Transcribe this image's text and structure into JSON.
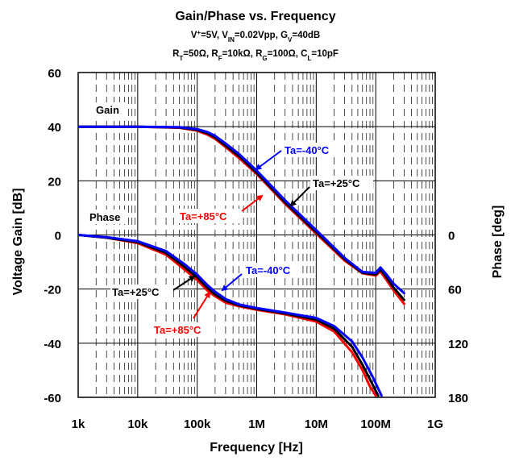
{
  "chart_data": {
    "type": "line",
    "title": "Gain/Phase vs. Frequency",
    "subtitle1": "V⁺=5V, V_IN=0.02Vpp, G_V=40dB",
    "subtitle2": "R_T=50Ω, R_F=10kΩ, R_G=100Ω, C_L=10pF",
    "xlabel": "Frequency [Hz]",
    "ylabel": "Voltage Gain [dB]",
    "y2label": "Phase [deg]",
    "x_scale": "log",
    "xlim": [
      1000,
      1000000000
    ],
    "ylim": [
      -60,
      60
    ],
    "y2lim": [
      180,
      -180
    ],
    "grid": true,
    "x_ticks": [
      {
        "value": 1000,
        "label": "1k"
      },
      {
        "value": 10000,
        "label": "10k"
      },
      {
        "value": 100000,
        "label": "100k"
      },
      {
        "value": 1000000,
        "label": "1M"
      },
      {
        "value": 10000000,
        "label": "10M"
      },
      {
        "value": 100000000,
        "label": "100M"
      },
      {
        "value": 1000000000,
        "label": "1G"
      }
    ],
    "y_ticks": [
      {
        "value": 60,
        "label": "60"
      },
      {
        "value": 40,
        "label": "40"
      },
      {
        "value": 20,
        "label": "20"
      },
      {
        "value": 0,
        "label": "0"
      },
      {
        "value": -20,
        "label": "-20"
      },
      {
        "value": -40,
        "label": "-40"
      },
      {
        "value": -60,
        "label": "-60"
      }
    ],
    "y2_ticks": [
      {
        "value": 0,
        "label": "0"
      },
      {
        "value": 60,
        "label": "60"
      },
      {
        "value": 120,
        "label": "120"
      },
      {
        "value": 180,
        "label": "180"
      }
    ],
    "colors": {
      "red": "#ff0000",
      "black": "#000000",
      "blue": "#0000ff"
    },
    "series": [
      {
        "name": "Ta=+85°C",
        "kind": "gain",
        "color": "red",
        "x": [
          1000,
          10000,
          50000,
          100000,
          150000,
          200000,
          300000,
          500000,
          1000000,
          3000000,
          10000000,
          30000000,
          60000000,
          100000000,
          120000000,
          150000000,
          200000000,
          300000000
        ],
        "y": [
          40,
          40,
          39.6,
          38.5,
          37,
          35.5,
          32.5,
          28.5,
          22.5,
          11.5,
          0.5,
          -9.5,
          -14.2,
          -15,
          -13.5,
          -16.5,
          -20.5,
          -25.5
        ]
      },
      {
        "name": "Ta=+25°C",
        "kind": "gain",
        "color": "black",
        "x": [
          1000,
          10000,
          50000,
          100000,
          150000,
          200000,
          300000,
          500000,
          1000000,
          3000000,
          10000000,
          30000000,
          60000000,
          100000000,
          120000000,
          150000000,
          200000000,
          300000000
        ],
        "y": [
          40,
          40,
          39.7,
          38.8,
          37.5,
          36,
          33,
          29.2,
          23,
          12,
          1,
          -9,
          -14,
          -14.6,
          -12.8,
          -15.5,
          -19.5,
          -24
        ]
      },
      {
        "name": "Ta=-40°C",
        "kind": "gain",
        "color": "blue",
        "x": [
          1000,
          10000,
          50000,
          100000,
          150000,
          200000,
          300000,
          500000,
          1000000,
          3000000,
          10000000,
          30000000,
          60000000,
          100000000,
          120000000,
          150000000,
          200000000,
          300000000
        ],
        "y": [
          40,
          40,
          39.8,
          39.1,
          38,
          36.6,
          33.8,
          30,
          23.8,
          12.8,
          1.8,
          -8.5,
          -13.7,
          -14,
          -12,
          -14.5,
          -18,
          -21.5
        ]
      },
      {
        "name": "Ta=+85°C",
        "kind": "phase",
        "color": "red",
        "x": [
          1000,
          3000,
          10000,
          30000,
          60000,
          100000,
          150000,
          200000,
          300000,
          500000,
          1000000,
          3000000,
          10000000,
          20000000,
          40000000,
          60000000,
          80000000,
          100000000
        ],
        "y": [
          0,
          3,
          9,
          22,
          38,
          50,
          62,
          68,
          75,
          79,
          83,
          88,
          96,
          107,
          130,
          150,
          168,
          178
        ]
      },
      {
        "name": "Ta=+25°C",
        "kind": "phase",
        "color": "black",
        "x": [
          1000,
          3000,
          10000,
          30000,
          60000,
          100000,
          150000,
          200000,
          300000,
          500000,
          1000000,
          3000000,
          10000000,
          20000000,
          40000000,
          60000000,
          80000000,
          110000000
        ],
        "y": [
          0,
          3,
          8,
          20,
          35,
          47,
          59,
          66,
          73,
          78,
          82,
          87,
          94,
          104,
          124,
          144,
          160,
          178
        ]
      },
      {
        "name": "Ta=-40°C",
        "kind": "phase",
        "color": "blue",
        "x": [
          1000,
          3000,
          10000,
          30000,
          60000,
          100000,
          150000,
          200000,
          300000,
          500000,
          1000000,
          3000000,
          10000000,
          20000000,
          40000000,
          60000000,
          90000000,
          125000000
        ],
        "y": [
          0,
          2.5,
          7,
          18,
          32,
          44,
          56,
          63,
          71,
          77,
          81,
          86,
          92,
          101,
          118,
          136,
          158,
          178
        ]
      }
    ],
    "annotations": [
      {
        "text": "Gain",
        "color": "black"
      },
      {
        "text": "Phase",
        "color": "black"
      },
      {
        "text": "Ta=-40°C",
        "color": "blue"
      },
      {
        "text": "Ta=+25°C",
        "color": "black"
      },
      {
        "text": "Ta=+85°C",
        "color": "red"
      },
      {
        "text": "Ta=-40°C",
        "color": "blue"
      },
      {
        "text": "Ta=+25°C",
        "color": "black"
      },
      {
        "text": "Ta=+85°C",
        "color": "red"
      }
    ]
  }
}
